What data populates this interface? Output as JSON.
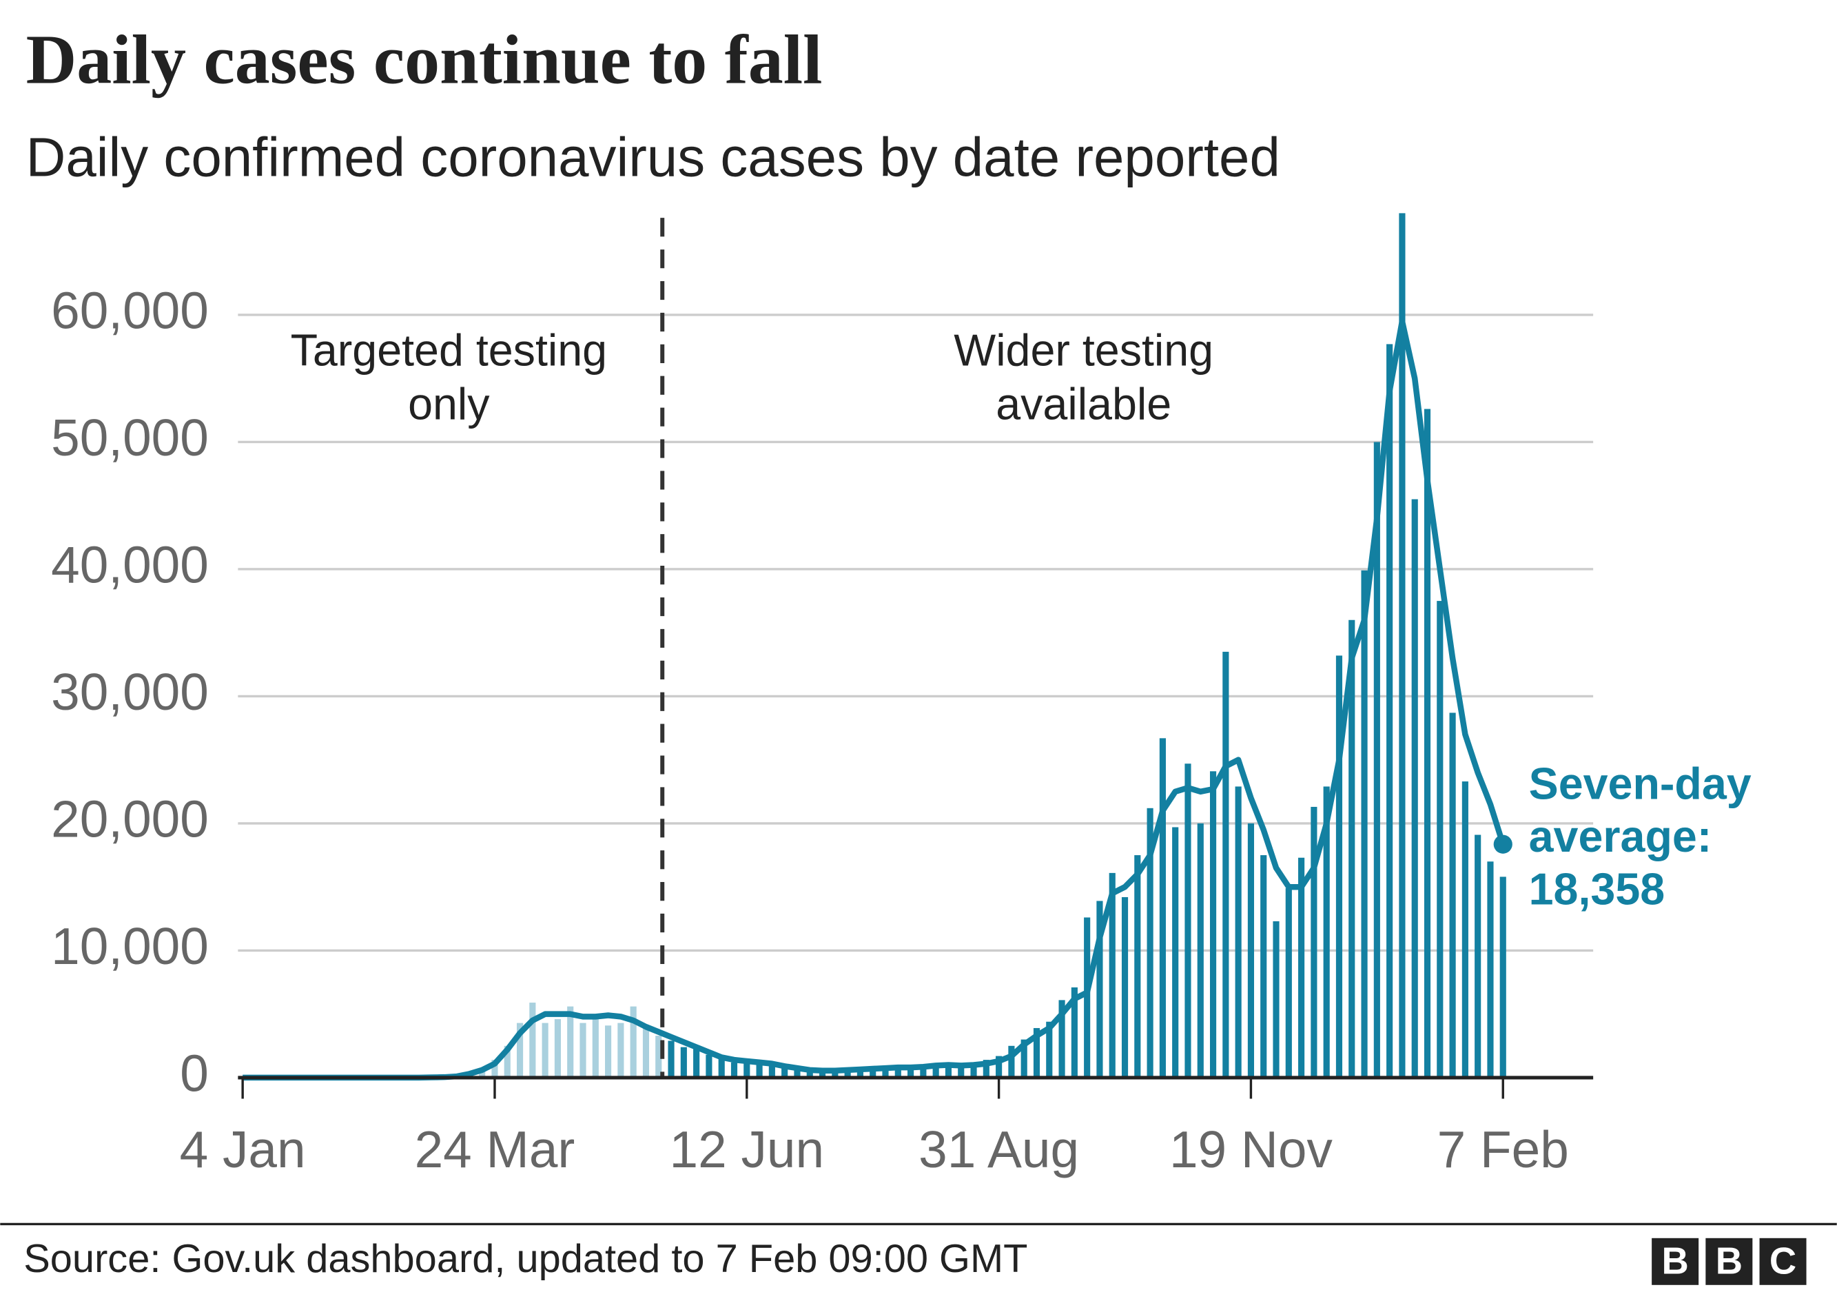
{
  "chart_data": {
    "type": "bar_line",
    "title": "Daily cases continue to fall",
    "subtitle": "Daily confirmed coronavirus cases by date reported",
    "source": "Source: Gov.uk dashboard, updated to 7 Feb 09:00 GMT",
    "logo": [
      "B",
      "B",
      "C"
    ],
    "categories": [
      "4 Jan",
      null,
      null,
      null,
      null,
      null,
      null,
      null,
      null,
      null,
      null,
      null,
      null,
      null,
      null,
      null,
      null,
      null,
      null,
      null,
      "24 Mar",
      null,
      null,
      null,
      null,
      null,
      null,
      null,
      null,
      null,
      null,
      null,
      null,
      null,
      null,
      null,
      null,
      null,
      null,
      null,
      "12 Jun",
      null,
      null,
      null,
      null,
      null,
      null,
      null,
      null,
      null,
      null,
      null,
      null,
      null,
      null,
      null,
      null,
      null,
      null,
      null,
      "31 Aug",
      null,
      null,
      null,
      null,
      null,
      null,
      null,
      null,
      null,
      null,
      null,
      null,
      null,
      null,
      null,
      null,
      null,
      null,
      null,
      "19 Nov",
      null,
      null,
      null,
      null,
      null,
      null,
      null,
      null,
      null,
      null,
      null,
      null,
      null,
      null,
      null,
      null,
      null,
      null,
      null,
      "7 Feb"
    ],
    "series": [
      {
        "type": "bar",
        "color": "#1380a1",
        "color_before_divider": "#a9d0de",
        "values": [
          0,
          0,
          0,
          0,
          0,
          0,
          0,
          0,
          0,
          0,
          0,
          0,
          0,
          0,
          0,
          30,
          50,
          130,
          400,
          700,
          1400,
          2500,
          4300,
          5900,
          4300,
          4600,
          5600,
          4300,
          4900,
          4100,
          4300,
          5600,
          3900,
          3300,
          2900,
          2400,
          2400,
          1800,
          1500,
          1200,
          1500,
          1000,
          900,
          800,
          600,
          500,
          700,
          500,
          750,
          600,
          800,
          700,
          900,
          750,
          1000,
          900,
          1100,
          1000,
          1200,
          1400,
          1700,
          2500,
          3000,
          3900,
          4400,
          6100,
          7100,
          12600,
          13900,
          16100,
          14200,
          17500,
          21200,
          26700,
          19700,
          24700,
          20000,
          24100,
          33500,
          22900,
          20000,
          17500,
          12300,
          14900,
          17300,
          21300,
          22900,
          33200,
          36000,
          39900,
          50000,
          57700,
          68000,
          45500,
          52600,
          37500,
          28700,
          23300,
          19100,
          17000,
          15800
        ]
      },
      {
        "type": "line",
        "color": "#1380a1",
        "values": [
          0,
          0,
          0,
          0,
          0,
          0,
          0,
          0,
          0,
          0,
          0,
          0,
          0,
          0,
          0,
          20,
          40,
          100,
          300,
          600,
          1100,
          2200,
          3500,
          4500,
          5000,
          5000,
          5000,
          4800,
          4800,
          4900,
          4800,
          4500,
          4000,
          3600,
          3200,
          2800,
          2400,
          2000,
          1600,
          1400,
          1300,
          1200,
          1100,
          900,
          750,
          600,
          550,
          550,
          600,
          650,
          700,
          750,
          800,
          800,
          850,
          950,
          1000,
          950,
          1000,
          1100,
          1300,
          1700,
          2600,
          3300,
          3900,
          5000,
          6200,
          6700,
          11000,
          14500,
          15000,
          16000,
          17500,
          21000,
          22500,
          22800,
          22500,
          22700,
          24500,
          25000,
          22000,
          19500,
          16500,
          15000,
          15000,
          16500,
          20000,
          25000,
          33000,
          36000,
          44000,
          54000,
          59500,
          55000,
          47000,
          40000,
          33000,
          27000,
          24000,
          21500,
          18358
        ],
        "value_labels": [
          null,
          null,
          null,
          null,
          null,
          null,
          null,
          null,
          null,
          null,
          null,
          null,
          null,
          null,
          null,
          null,
          null,
          null,
          null,
          null,
          null,
          null,
          null,
          null,
          null,
          null,
          null,
          null,
          null,
          null,
          null,
          null,
          null,
          null,
          null,
          null,
          null,
          null,
          null,
          null,
          null,
          null,
          null,
          null,
          null,
          null,
          null,
          null,
          null,
          null,
          null,
          null,
          null,
          null,
          null,
          null,
          null,
          null,
          null,
          null,
          null,
          null,
          null,
          null,
          null,
          null,
          null,
          null,
          null,
          null,
          null,
          null,
          null,
          null,
          null,
          null,
          null,
          null,
          null,
          null,
          null,
          null,
          null,
          null,
          null,
          null,
          null,
          null,
          null,
          null,
          null,
          null,
          null,
          null,
          null,
          null,
          null,
          null,
          null,
          null,
          "18,358"
        ],
        "end_label": [
          "Seven-day",
          "average:"
        ]
      }
    ],
    "annotations": [
      {
        "lines": [
          "Targeted testing",
          "only"
        ]
      },
      {
        "lines": [
          "Wider testing",
          "available"
        ]
      }
    ],
    "ylim": [
      0,
      68000
    ],
    "yticks": [
      0,
      {
        "value": 10000,
        "label": "10,000"
      },
      {
        "value": 20000,
        "label": "20,000"
      },
      {
        "value": 30000,
        "label": "30,000"
      },
      {
        "value": 40000,
        "label": "40,000"
      },
      {
        "value": 50000,
        "label": "50,000"
      },
      {
        "value": 60000,
        "label": "60,000"
      }
    ],
    "grid": true
  }
}
